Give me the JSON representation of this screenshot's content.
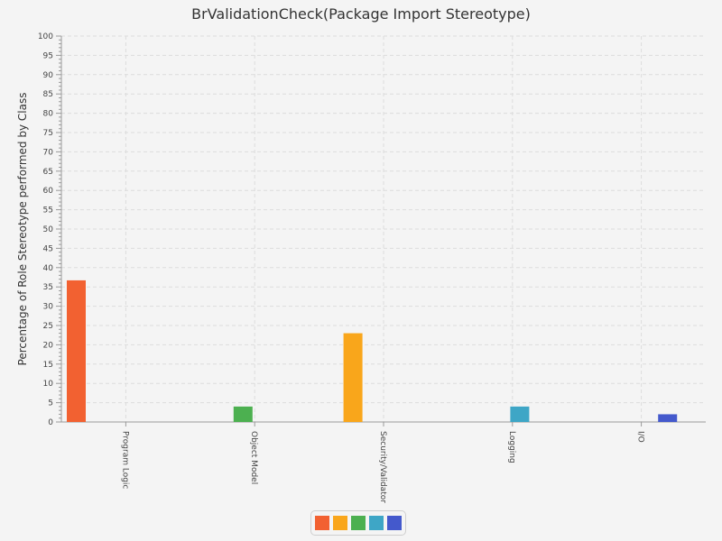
{
  "chart_data": {
    "type": "bar",
    "title": "BrValidationCheck(Package Import Stereotype)",
    "xlabel": "",
    "ylabel": "Percentage of Role Stereotype performed by Class",
    "ylim": [
      0,
      100
    ],
    "y_major_step": 5,
    "y_minor_step": 1,
    "grid": true,
    "legend_position": "bottom-center",
    "categories": [
      "Program Logic",
      "Object Model",
      "Security/Validator",
      "Logging",
      "I/O"
    ],
    "series": [
      {
        "color": "#f26131",
        "values": [
          36.7,
          0,
          0,
          0,
          0
        ]
      },
      {
        "color": "#f9a61b",
        "values": [
          0,
          0,
          23.0,
          0,
          0
        ]
      },
      {
        "color": "#4cb050",
        "values": [
          0,
          4.0,
          0,
          0,
          0
        ]
      },
      {
        "color": "#3ea6c6",
        "values": [
          0,
          0,
          0,
          4.0,
          0
        ]
      },
      {
        "color": "#4459cc",
        "values": [
          0,
          0,
          0,
          0,
          2.0
        ]
      }
    ]
  }
}
